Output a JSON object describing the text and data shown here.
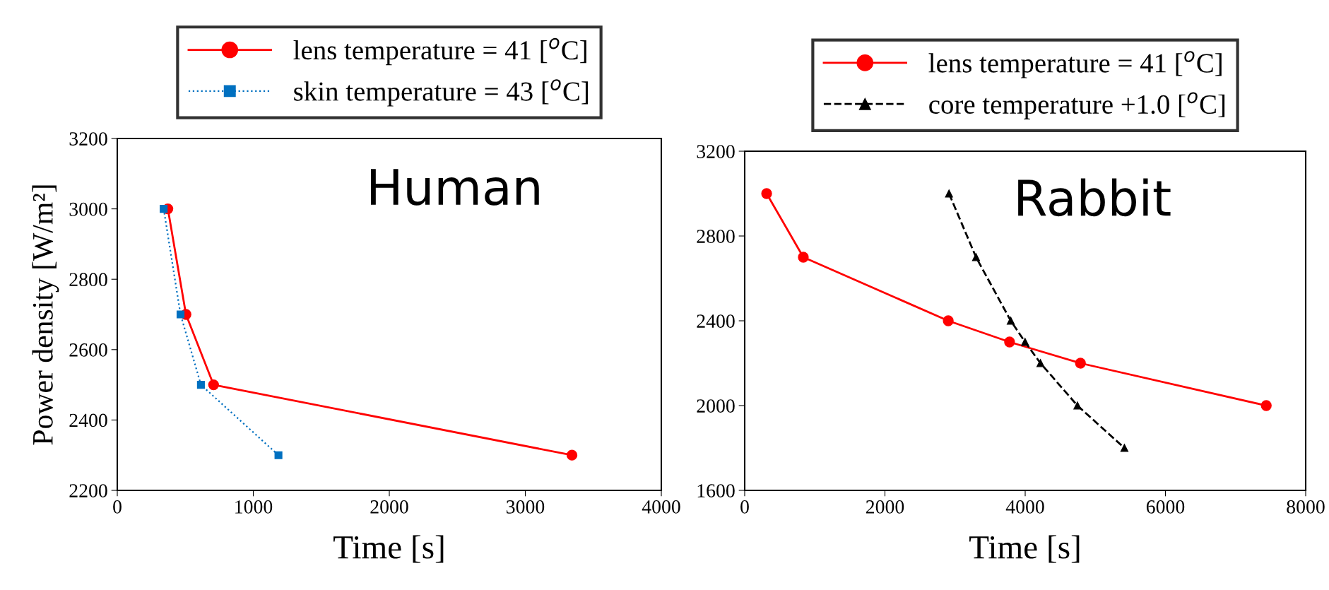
{
  "chart_data": [
    {
      "type": "line",
      "title": "Human",
      "xlabel": "Time [s]",
      "ylabel": "Power density [W/m²]",
      "xlim": [
        0,
        4000
      ],
      "xticks": [
        0,
        1000,
        2000,
        3000,
        4000
      ],
      "ylim": [
        2200,
        3200
      ],
      "yticks": [
        2200,
        2400,
        2600,
        2800,
        3000,
        3200
      ],
      "legend": "top",
      "grid": false,
      "series": [
        {
          "name": "lens temperature = 41 [$^{o}$C]",
          "color": "#ff0000",
          "marker": "circle",
          "line_style": "solid",
          "x": [
            372,
            505,
            708,
            3343
          ],
          "values": [
            3000,
            2700,
            2500,
            2300
          ]
        },
        {
          "name": "skin temperature = 43 [$^{o}$C]",
          "color": "#0070c0",
          "marker": "square",
          "line_style": "dotted",
          "x": [
            341,
            465,
            615,
            1185
          ],
          "values": [
            3000,
            2700,
            2500,
            2300
          ]
        }
      ]
    },
    {
      "type": "line",
      "title": "Rabbit",
      "xlabel": "Time [s]",
      "xlim": [
        0,
        8000
      ],
      "xticks": [
        0,
        2000,
        4000,
        6000,
        8000
      ],
      "ylim": [
        1600,
        3200
      ],
      "yticks": [
        1600,
        2000,
        2400,
        2800,
        3200
      ],
      "legend": "top",
      "grid": false,
      "series": [
        {
          "name": "lens temperature = 41 [$^{o}$C]",
          "color": "#ff0000",
          "marker": "circle",
          "line_style": "solid",
          "x": [
            313,
            836,
            2903,
            3777,
            4788,
            7438
          ],
          "values": [
            3000,
            2700,
            2400,
            2300,
            2200,
            2000
          ]
        },
        {
          "name": "core temperature +1.0 [$^{o}$C]",
          "color": "#000000",
          "marker": "triangle",
          "line_style": "dashed",
          "x": [
            2914,
            3299,
            3794,
            3998,
            4218,
            4745,
            5415
          ],
          "values": [
            3000,
            2700,
            2400,
            2300,
            2200,
            2000,
            1800
          ]
        }
      ]
    }
  ]
}
